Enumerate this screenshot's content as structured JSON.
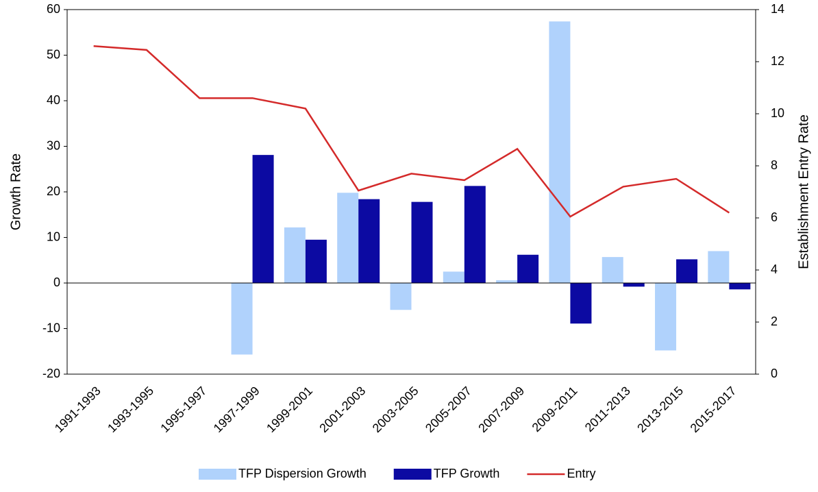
{
  "chart_data": {
    "type": "bar-line",
    "categories": [
      "1991-1993",
      "1993-1995",
      "1995-1997",
      "1997-1999",
      "1999-2001",
      "2001-2003",
      "2003-2005",
      "2005-2007",
      "2007-2009",
      "2009-2011",
      "2011-2013",
      "2013-2015",
      "2015-2017"
    ],
    "series": [
      {
        "name": "TFP Dispersion Growth",
        "color": "#b0d2fc",
        "type": "bar",
        "values": [
          null,
          null,
          null,
          -15.7,
          12.2,
          19.8,
          -5.9,
          2.5,
          0.6,
          57.4,
          5.7,
          -14.8,
          7.0
        ]
      },
      {
        "name": "TFP Growth",
        "color": "#0c0aa2",
        "type": "bar",
        "values": [
          null,
          null,
          null,
          28.1,
          9.5,
          18.4,
          17.8,
          21.3,
          6.2,
          -8.9,
          -0.8,
          5.2,
          -1.4
        ]
      },
      {
        "name": "Entry",
        "color": "#d42a2a",
        "type": "line",
        "axis": "y2",
        "values": [
          12.6,
          12.45,
          10.6,
          10.6,
          10.2,
          7.05,
          7.7,
          7.45,
          8.65,
          6.05,
          7.2,
          7.5,
          6.2
        ]
      }
    ],
    "ylabel": "Growth Rate",
    "y2label": "Establishment Entry Rate",
    "ylim": [
      -20,
      60
    ],
    "yticks": [
      -20,
      -10,
      0,
      10,
      20,
      30,
      40,
      50,
      60
    ],
    "y2lim": [
      0,
      14
    ],
    "y2ticks": [
      0,
      2,
      4,
      6,
      8,
      10,
      12,
      14
    ],
    "legend": "bottom"
  }
}
